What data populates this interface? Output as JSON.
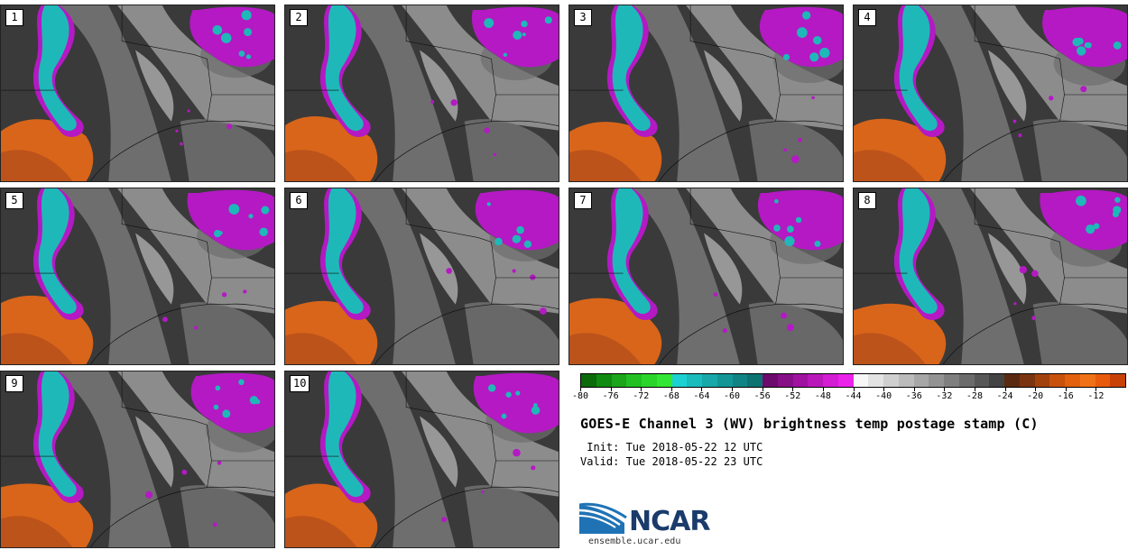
{
  "stamps": [
    {
      "label": "1"
    },
    {
      "label": "2"
    },
    {
      "label": "3"
    },
    {
      "label": "4"
    },
    {
      "label": "5"
    },
    {
      "label": "6"
    },
    {
      "label": "7"
    },
    {
      "label": "8"
    },
    {
      "label": "9"
    },
    {
      "label": "10"
    }
  ],
  "colorbar": {
    "colors": [
      "#0b6b0b",
      "#108a10",
      "#1aa51a",
      "#22c022",
      "#2ad52a",
      "#33e633",
      "#1bd1d1",
      "#1bbcbc",
      "#17a9a9",
      "#139696",
      "#108484",
      "#0d7272",
      "#6d0a6d",
      "#860f86",
      "#a012a0",
      "#b918b9",
      "#d31dd3",
      "#ea22ea",
      "#f7f7f7",
      "#e3e3e3",
      "#cfcfcf",
      "#bbbbbb",
      "#a7a7a7",
      "#939393",
      "#7f7f7f",
      "#6b6b6b",
      "#575757",
      "#434343",
      "#5a2a10",
      "#7a3410",
      "#a1420d",
      "#c8510c",
      "#e2600e",
      "#f07218",
      "#e85a0c",
      "#c84208"
    ],
    "tick_labels": [
      "-80",
      "-76",
      "-72",
      "-68",
      "-64",
      "-60",
      "-56",
      "-52",
      "-48",
      "-44",
      "-40",
      "-36",
      "-32",
      "-28",
      "-24",
      "-20",
      "-16",
      "-12"
    ]
  },
  "title": "GOES-E Channel 3 (WV) brightness temp postage stamp (C)",
  "init": " Init: Tue 2018-05-22 12 UTC",
  "valid": "Valid: Tue 2018-05-22 23 UTC",
  "logo": {
    "text": "NCAR",
    "site": "ensemble.ucar.edu"
  },
  "palette": {
    "dark": "#3a3a3a",
    "mid": "#6e6e6e",
    "light": "#a8a8a8",
    "bright": "#d6d6d6",
    "orange": "#d9651a",
    "orange_dark": "#a9471a",
    "cyan": "#1fb8b8",
    "magenta": "#b419c4",
    "outline": "#111111"
  }
}
